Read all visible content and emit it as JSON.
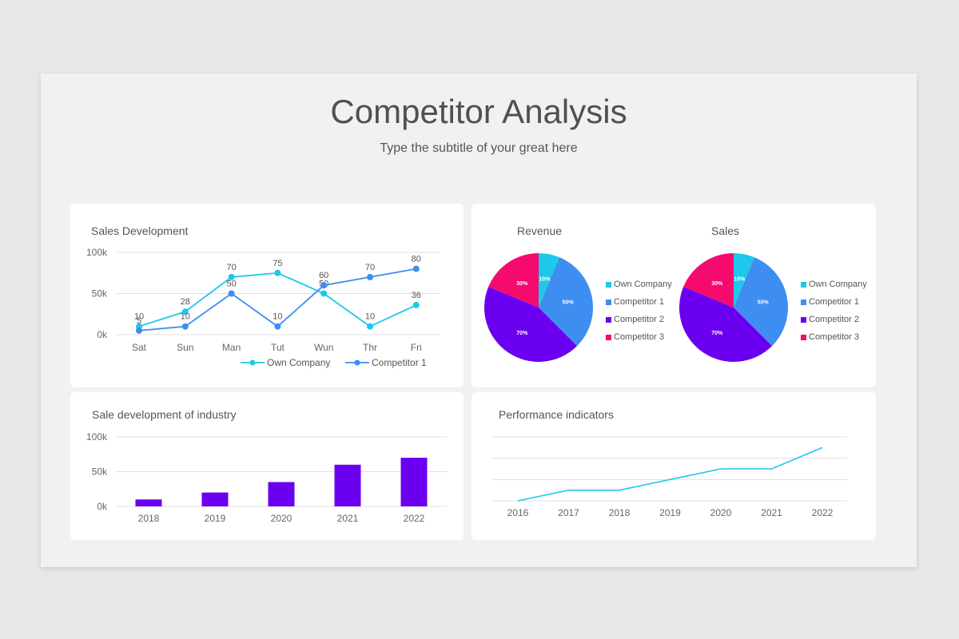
{
  "header": {
    "title": "Competitor Analysis",
    "subtitle": "Type the subtitle of your great here"
  },
  "colors": {
    "own_company": "#1ec8ea",
    "competitor_1": "#3d8ef0",
    "competitor_2": "#6b00f0",
    "competitor_3": "#f50a6e",
    "bar": "#6b00f0",
    "performance_line": "#1ec8ea"
  },
  "cards": {
    "sales_development": {
      "title": "Sales Development"
    },
    "revenue": {
      "title": "Revenue"
    },
    "sales": {
      "title": "Sales"
    },
    "industry": {
      "title": "Sale development of industry"
    },
    "performance": {
      "title": "Performance indicators"
    }
  },
  "chart_data": [
    {
      "id": "sales_development",
      "type": "line",
      "title": "Sales Development",
      "categories": [
        "Sat",
        "Sun",
        "Man",
        "Tut",
        "Wun",
        "Thr",
        "Fri"
      ],
      "series": [
        {
          "name": "Own Company",
          "values": [
            10,
            28,
            70,
            75,
            50,
            10,
            36
          ],
          "color": "#1ec8ea"
        },
        {
          "name": "Competitor 1",
          "values": [
            5,
            10,
            50,
            10,
            60,
            70,
            80
          ],
          "color": "#3d8ef0"
        }
      ],
      "yticks": [
        "0k",
        "50k",
        "100k"
      ],
      "ylim": [
        0,
        100
      ],
      "grid": true,
      "legend_position": "bottom-right",
      "data_labels": true
    },
    {
      "id": "revenue",
      "type": "pie",
      "title": "Revenue",
      "labels": [
        "Own Company",
        "Competitor 1",
        "Competitor 2",
        "Competitor 3"
      ],
      "values": [
        10,
        50,
        70,
        30
      ],
      "slice_labels": [
        "10%",
        "50%",
        "70%",
        "30%"
      ],
      "colors": [
        "#1ec8ea",
        "#3d8ef0",
        "#6b00f0",
        "#f50a6e"
      ],
      "legend_position": "right"
    },
    {
      "id": "sales",
      "type": "pie",
      "title": "Sales",
      "labels": [
        "Own Company",
        "Competitor 1",
        "Competitor 2",
        "Competitor 3"
      ],
      "values": [
        10,
        50,
        70,
        30
      ],
      "slice_labels": [
        "10%",
        "50%",
        "70%",
        "30%"
      ],
      "colors": [
        "#1ec8ea",
        "#3d8ef0",
        "#6b00f0",
        "#f50a6e"
      ],
      "legend_position": "right"
    },
    {
      "id": "industry",
      "type": "bar",
      "title": "Sale development of industry",
      "categories": [
        "2018",
        "2019",
        "2020",
        "2021",
        "2022"
      ],
      "values": [
        10,
        20,
        35,
        60,
        70
      ],
      "yticks": [
        "0k",
        "50k",
        "100k"
      ],
      "ylim": [
        0,
        100
      ],
      "grid": true
    },
    {
      "id": "performance",
      "type": "line",
      "title": "Performance indicators",
      "categories": [
        "2016",
        "2017",
        "2018",
        "2019",
        "2020",
        "2021",
        "2022"
      ],
      "values": [
        0,
        0.5,
        0.5,
        1,
        1.5,
        1.5,
        2.5
      ],
      "ylim": [
        0,
        3
      ],
      "yticks": [],
      "grid": true
    }
  ]
}
